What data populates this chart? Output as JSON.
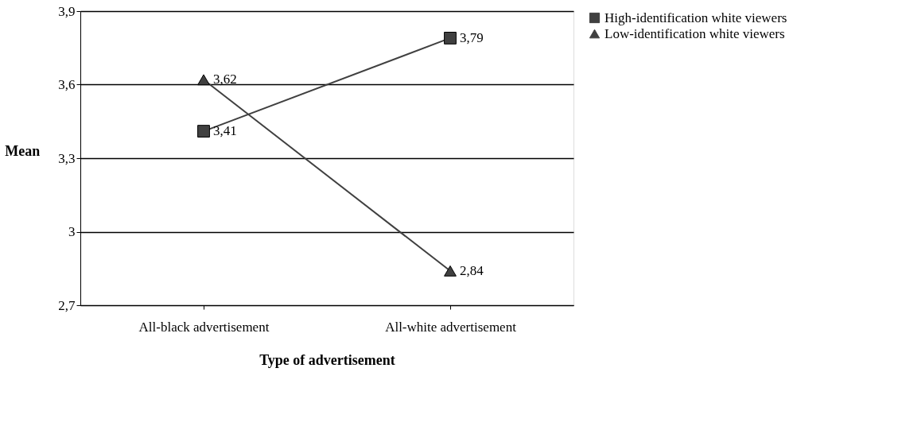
{
  "chart_data": {
    "type": "line",
    "xlabel": "Type of advertisement",
    "ylabel": "Mean",
    "categories": [
      "All-black advertisement",
      "All-white advertisement"
    ],
    "series": [
      {
        "name": "High-identification white viewers",
        "color": "#404040",
        "marker": "square",
        "values": [
          3.41,
          3.79
        ],
        "value_labels": [
          "3,41",
          "3,79"
        ]
      },
      {
        "name": "Low-identification white viewers",
        "color": "#404040",
        "marker": "triangle",
        "values": [
          3.62,
          2.84
        ],
        "value_labels": [
          "3,62",
          "2,84"
        ]
      }
    ],
    "ylim": [
      2.7,
      3.9
    ],
    "yticks": [
      {
        "value": 2.7,
        "label": "2,7"
      },
      3,
      {
        "value": 3.3,
        "label": "3,3"
      },
      {
        "value": 3.6,
        "label": "3,6"
      },
      {
        "value": 3.9,
        "label": "3,9"
      }
    ],
    "grid": "y",
    "legend": "right",
    "line_style": "solid"
  }
}
